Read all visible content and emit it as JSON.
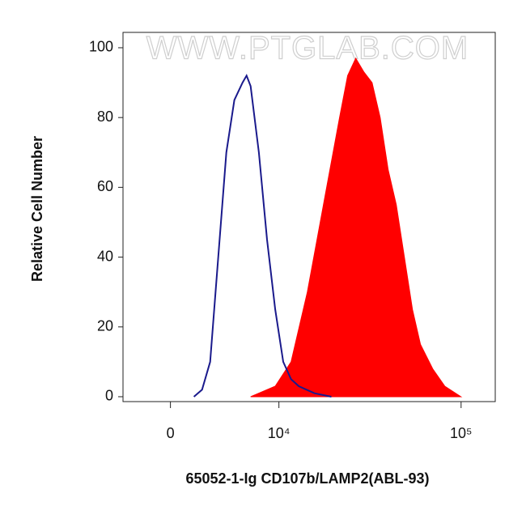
{
  "chart_data": {
    "type": "area",
    "watermark": "WWW.PTGLAB.COM",
    "x_label": "65052-1-Ig CD107b/LAMP2(ABL-93)",
    "y_label": "Relative Cell Number",
    "xscale": "asinh",
    "xlim": [
      -3500,
      152000
    ],
    "ylim": [
      -1.4,
      104.4
    ],
    "xticks": [
      {
        "value": 0,
        "label": "0"
      },
      {
        "value": 10000,
        "label": "10⁴"
      },
      {
        "value": 100000,
        "label": "10⁵"
      }
    ],
    "yticks": [
      0,
      20,
      40,
      60,
      80,
      100
    ],
    "series": [
      {
        "color": "#ff0000",
        "filled": true,
        "x": [
          6540,
          9490,
          11830,
          14700,
          18120,
          22230,
          24620,
          27250,
          30210,
          33400,
          36940,
          40810,
          45090,
          49820,
          55060,
          60760,
          70570,
          81910,
          99860
        ],
        "values": [
          0,
          3,
          10,
          30,
          55,
          80,
          92,
          97,
          93,
          90,
          80,
          65,
          55,
          40,
          25,
          15,
          8,
          3,
          0
        ]
      },
      {
        "color": "#1a1a8c",
        "filled": false,
        "x": [
          1660,
          2260,
          2880,
          3530,
          4210,
          4930,
          5710,
          6120,
          6540,
          7450,
          8430,
          9490,
          10620,
          11830,
          13140,
          16130,
          20060
        ],
        "values": [
          0,
          2,
          10,
          40,
          70,
          85,
          90,
          92,
          89,
          70,
          45,
          25,
          10,
          5,
          3,
          1,
          0
        ]
      }
    ]
  }
}
